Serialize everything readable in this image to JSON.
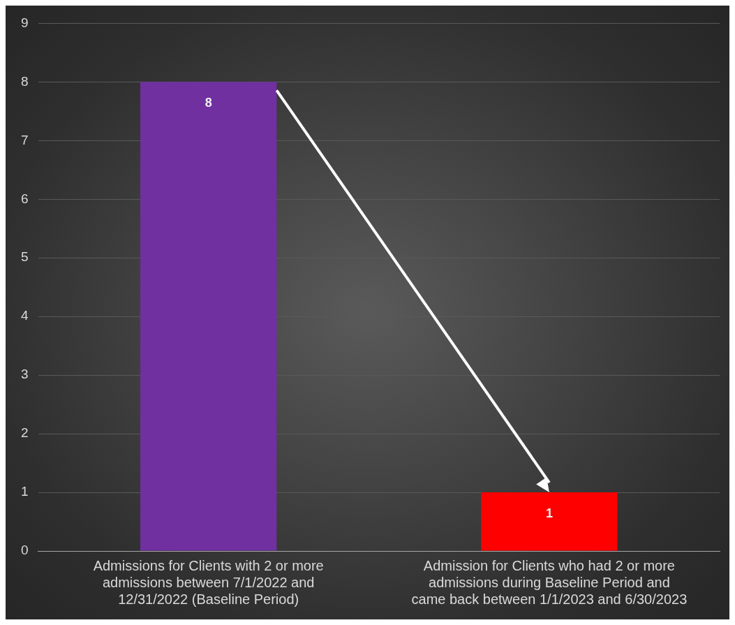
{
  "chart_data": {
    "type": "bar",
    "categories": [
      "Admissions for Clients with 2 or more admissions between 7/1/2022 and 12/31/2022 (Baseline Period)",
      "Admission for Clients who had 2 or more admissions during Baseline Period and came back between 1/1/2023 and 6/30/2023"
    ],
    "values": [
      8,
      1
    ],
    "colors": [
      "#7030a0",
      "#ff0000"
    ],
    "ylim": [
      0,
      9
    ],
    "yticks": [
      0,
      1,
      2,
      3,
      4,
      5,
      6,
      7,
      8,
      9
    ],
    "grid": "y",
    "data_labels": true,
    "legend": false
  }
}
